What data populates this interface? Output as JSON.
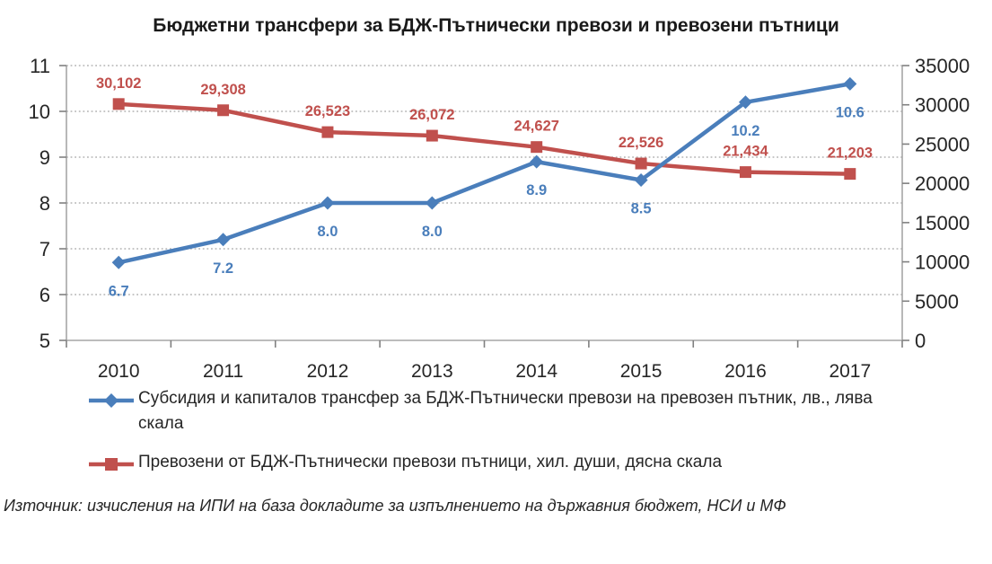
{
  "title": "Бюджетни трансфери за БДЖ-Пътнически превози и превозени пътници",
  "source_note": "Източник: изчисления на ИПИ на база докладите за изпълнението на държавния бюджет, НСИ и МФ",
  "colors": {
    "series_blue": "#4A7EBB",
    "series_red": "#C0504D",
    "grid": "#B3B3B3",
    "axis": "#A6A6A6",
    "tick": "#808080",
    "tick_text": "#262626"
  },
  "chart_data": {
    "type": "line",
    "categories": [
      "2010",
      "2011",
      "2012",
      "2013",
      "2014",
      "2015",
      "2016",
      "2017"
    ],
    "series": [
      {
        "id": "subsidy-per-passenger",
        "name": "Субсидия и капиталов трансфер за БДЖ-Пътнически превози на превозен пътник, лв., лява скала",
        "axis": "left",
        "color": "#4A7EBB",
        "marker": "diamond",
        "values": [
          6.7,
          7.2,
          8.0,
          8.0,
          8.9,
          8.5,
          10.2,
          10.6
        ],
        "labels": [
          "6.7",
          "7.2",
          "8.0",
          "8.0",
          "8.9",
          "8.5",
          "10.2",
          "10.6"
        ],
        "label_position": "below"
      },
      {
        "id": "passengers-carried",
        "name": "Превозени от БДЖ-Пътнически превози пътници, хил. души, дясна скала",
        "axis": "right",
        "color": "#C0504D",
        "marker": "square",
        "values": [
          30102,
          29308,
          26523,
          26072,
          24627,
          22526,
          21434,
          21203
        ],
        "labels": [
          "30,102",
          "29,308",
          "26,523",
          "26,072",
          "24,627",
          "22,526",
          "21,434",
          "21,203"
        ],
        "label_position": "above"
      }
    ],
    "left_axis": {
      "min": 5,
      "max": 11,
      "step": 1,
      "ticks": [
        "5",
        "6",
        "7",
        "8",
        "9",
        "10",
        "11"
      ]
    },
    "right_axis": {
      "min": 0,
      "max": 35000,
      "step": 5000,
      "ticks": [
        "0",
        "5000",
        "10000",
        "15000",
        "20000",
        "25000",
        "30000",
        "35000"
      ]
    },
    "grid": true,
    "legend_position": "bottom"
  }
}
